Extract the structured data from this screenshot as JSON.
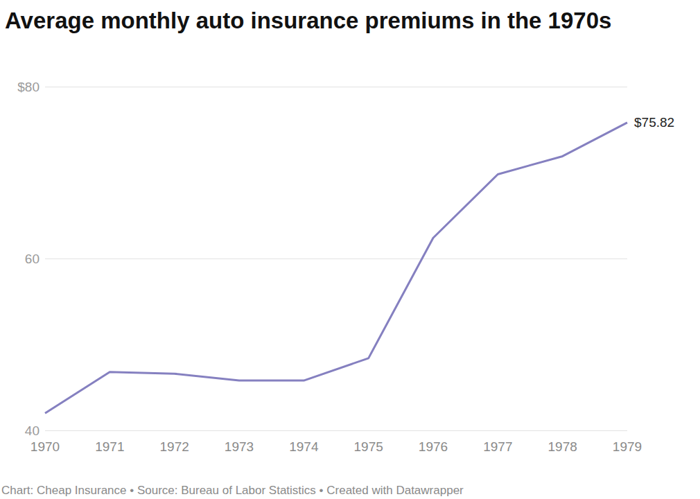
{
  "chart_data": {
    "type": "line",
    "title": "Average monthly auto insurance premiums in the 1970s",
    "source": "Chart: Cheap Insurance • Source: Bureau of Labor Statistics • Created with Datawrapper",
    "categories": [
      "1970",
      "1971",
      "1972",
      "1973",
      "1974",
      "1975",
      "1976",
      "1977",
      "1978",
      "1979"
    ],
    "values": [
      42.0,
      46.8,
      46.6,
      45.8,
      45.8,
      48.4,
      62.4,
      69.8,
      71.9,
      75.82
    ],
    "value_labels": [
      null,
      null,
      null,
      null,
      null,
      null,
      null,
      null,
      null,
      "$75.82"
    ],
    "color": "#8580c0",
    "ylim": [
      40,
      80
    ],
    "yticks": [
      40,
      60,
      {
        "value": 80,
        "label": "$80"
      }
    ],
    "grid": true
  }
}
